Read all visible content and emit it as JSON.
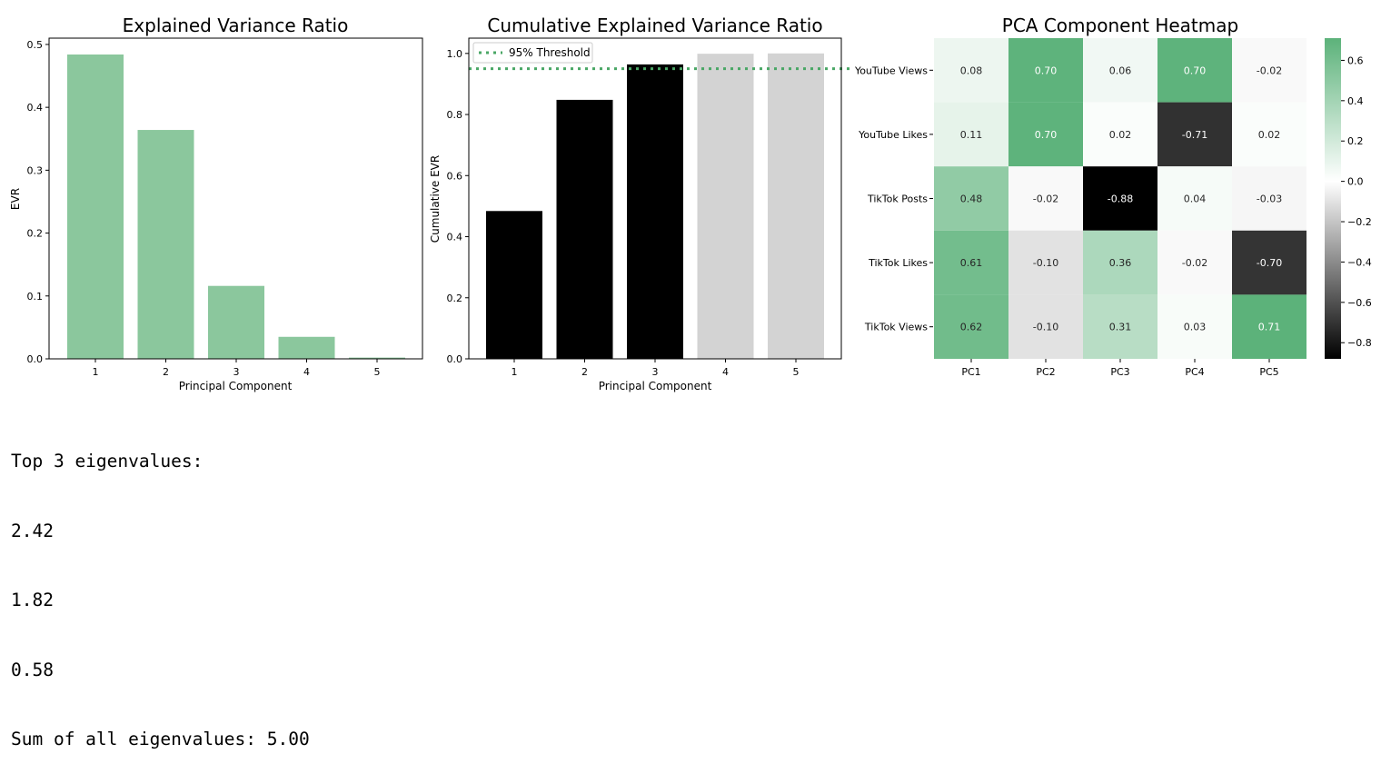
{
  "chart_data": [
    {
      "type": "bar",
      "title": "Explained Variance Ratio",
      "xlabel": "Principal Component",
      "ylabel": "EVR",
      "categories": [
        "1",
        "2",
        "3",
        "4",
        "5"
      ],
      "values": [
        0.484,
        0.364,
        0.116,
        0.035,
        0.002
      ],
      "ylim": [
        0,
        0.51
      ],
      "yticks": [
        0.0,
        0.1,
        0.2,
        0.3,
        0.4,
        0.5
      ],
      "ytick_labels": [
        "0.0",
        "0.1",
        "0.2",
        "0.3",
        "0.4",
        "0.5"
      ],
      "color": "#8bc79d"
    },
    {
      "type": "bar",
      "title": "Cumulative Explained Variance Ratio",
      "xlabel": "Principal Component",
      "ylabel": "Cumulative EVR",
      "categories": [
        "1",
        "2",
        "3",
        "4",
        "5"
      ],
      "values": [
        0.484,
        0.848,
        0.964,
        0.999,
        1.0
      ],
      "bar_colors": [
        "#000000",
        "#000000",
        "#000000",
        "#d3d3d3",
        "#d3d3d3"
      ],
      "ylim": [
        0,
        1.05
      ],
      "yticks": [
        0.0,
        0.2,
        0.4,
        0.6,
        0.8,
        1.0
      ],
      "ytick_labels": [
        "0.0",
        "0.2",
        "0.4",
        "0.6",
        "0.8",
        "1.0"
      ],
      "threshold": 0.95,
      "threshold_color": "#4aa766",
      "legend": "95% Threshold",
      "legend_position": "top-left"
    },
    {
      "type": "heatmap",
      "title": "PCA Component Heatmap",
      "rows": [
        "YouTube Views",
        "YouTube Likes",
        "TikTok Posts",
        "TikTok Likes",
        "TikTok Views"
      ],
      "columns": [
        "PC1",
        "PC2",
        "PC3",
        "PC4",
        "PC5"
      ],
      "values": [
        [
          0.08,
          0.7,
          0.06,
          0.7,
          -0.02
        ],
        [
          0.11,
          0.7,
          0.02,
          -0.71,
          0.02
        ],
        [
          0.48,
          -0.02,
          -0.88,
          0.04,
          -0.03
        ],
        [
          0.61,
          -0.1,
          0.36,
          -0.02,
          -0.7
        ],
        [
          0.62,
          -0.1,
          0.31,
          0.03,
          0.71
        ]
      ],
      "value_labels": [
        [
          "0.08",
          "0.70",
          "0.06",
          "0.70",
          "-0.02"
        ],
        [
          "0.11",
          "0.70",
          "0.02",
          "-0.71",
          "0.02"
        ],
        [
          "0.48",
          "-0.02",
          "-0.88",
          "0.04",
          "-0.03"
        ],
        [
          "0.61",
          "-0.10",
          "0.36",
          "-0.02",
          "-0.70"
        ],
        [
          "0.62",
          "-0.10",
          "0.31",
          "0.03",
          "0.71"
        ]
      ],
      "vmin": -0.88,
      "vmax": 0.71,
      "colorbar_ticks": [
        0.6,
        0.4,
        0.2,
        0.0,
        -0.2,
        -0.4,
        -0.6,
        -0.8
      ],
      "colorbar_tick_labels": [
        "0.6",
        "0.4",
        "0.2",
        "0.0",
        "−0.2",
        "−0.4",
        "−0.6",
        "−0.8"
      ],
      "colormap": {
        "low": "#000000",
        "mid": "#ffffff",
        "high": "#5cb27a"
      }
    }
  ],
  "output": {
    "lines": [
      "Top 3 eigenvalues:",
      "2.42",
      "1.82",
      "0.58",
      "Sum of all eigenvalues: 5.00"
    ]
  }
}
